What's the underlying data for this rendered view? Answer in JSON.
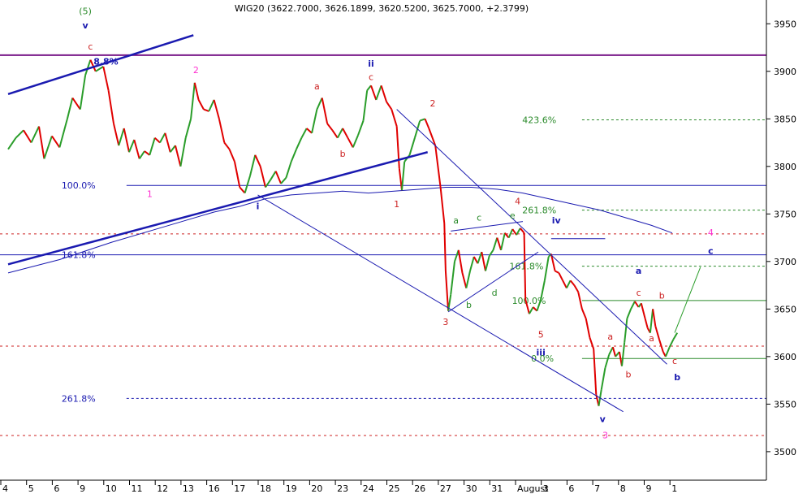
{
  "chart_data": {
    "type": "line",
    "title": "WIG20 (3622.7000, 3626.1899, 3620.5200, 3625.7000, +2.3799)",
    "ylim": [
      3470,
      3975
    ],
    "y_ticks": [
      3500,
      3550,
      3600,
      3650,
      3700,
      3750,
      3800,
      3850,
      3900,
      3950
    ],
    "x_tick_labels": [
      "4",
      "5",
      "6",
      "9",
      "10",
      "11",
      "12",
      "13",
      "16",
      "17",
      "18",
      "19",
      "20",
      "23",
      "24",
      "25",
      "26",
      "27",
      "30",
      "31",
      "August",
      "3",
      "6",
      "7",
      "8",
      "9",
      "1"
    ],
    "grid": false,
    "colors": {
      "up": "#2a9d2a",
      "down": "#e00000",
      "wave": "#1a1ab0",
      "purple_line": "#7a1a8a",
      "fib_blue": "#1a1ab0",
      "fib_red": "#cc2222",
      "fib_green": "#2a8a2a",
      "magenta": "#ff2fd0"
    },
    "price_path": [
      [
        0,
        3818
      ],
      [
        0.3,
        3830
      ],
      [
        0.6,
        3838
      ],
      [
        0.9,
        3825
      ],
      [
        1.2,
        3842
      ],
      [
        1.4,
        3808
      ],
      [
        1.7,
        3832
      ],
      [
        2.0,
        3820
      ],
      [
        2.3,
        3850
      ],
      [
        2.5,
        3872
      ],
      [
        2.8,
        3860
      ],
      [
        3.0,
        3896
      ],
      [
        3.2,
        3912
      ],
      [
        3.4,
        3900
      ],
      [
        3.7,
        3905
      ],
      [
        3.9,
        3880
      ],
      [
        4.1,
        3845
      ],
      [
        4.3,
        3822
      ],
      [
        4.5,
        3840
      ],
      [
        4.7,
        3815
      ],
      [
        4.9,
        3828
      ],
      [
        5.1,
        3808
      ],
      [
        5.3,
        3816
      ],
      [
        5.5,
        3812
      ],
      [
        5.7,
        3830
      ],
      [
        5.9,
        3825
      ],
      [
        6.1,
        3835
      ],
      [
        6.3,
        3815
      ],
      [
        6.5,
        3822
      ],
      [
        6.7,
        3800
      ],
      [
        6.9,
        3830
      ],
      [
        7.1,
        3850
      ],
      [
        7.25,
        3888
      ],
      [
        7.4,
        3870
      ],
      [
        7.6,
        3860
      ],
      [
        7.8,
        3858
      ],
      [
        8.0,
        3870
      ],
      [
        8.2,
        3850
      ],
      [
        8.4,
        3825
      ],
      [
        8.6,
        3818
      ],
      [
        8.8,
        3805
      ],
      [
        9.0,
        3778
      ],
      [
        9.2,
        3772
      ],
      [
        9.4,
        3790
      ],
      [
        9.6,
        3812
      ],
      [
        9.8,
        3800
      ],
      [
        10.0,
        3778
      ],
      [
        10.2,
        3786
      ],
      [
        10.4,
        3795
      ],
      [
        10.6,
        3782
      ],
      [
        10.8,
        3788
      ],
      [
        11.0,
        3805
      ],
      [
        11.2,
        3818
      ],
      [
        11.4,
        3830
      ],
      [
        11.6,
        3840
      ],
      [
        11.8,
        3835
      ],
      [
        12.0,
        3860
      ],
      [
        12.2,
        3872
      ],
      [
        12.4,
        3845
      ],
      [
        12.6,
        3838
      ],
      [
        12.8,
        3830
      ],
      [
        13.0,
        3840
      ],
      [
        13.2,
        3830
      ],
      [
        13.4,
        3820
      ],
      [
        13.6,
        3833
      ],
      [
        13.8,
        3848
      ],
      [
        13.95,
        3880
      ],
      [
        14.1,
        3885
      ],
      [
        14.3,
        3870
      ],
      [
        14.5,
        3885
      ],
      [
        14.7,
        3868
      ],
      [
        14.9,
        3860
      ],
      [
        15.1,
        3842
      ],
      [
        15.2,
        3798
      ],
      [
        15.3,
        3775
      ],
      [
        15.4,
        3805
      ],
      [
        15.6,
        3812
      ],
      [
        15.8,
        3830
      ],
      [
        16.0,
        3848
      ],
      [
        16.2,
        3850
      ],
      [
        16.35,
        3840
      ],
      [
        16.6,
        3822
      ],
      [
        16.8,
        3778
      ],
      [
        16.95,
        3740
      ],
      [
        17.0,
        3690
      ],
      [
        17.1,
        3648
      ],
      [
        17.2,
        3665
      ],
      [
        17.35,
        3700
      ],
      [
        17.5,
        3712
      ],
      [
        17.65,
        3688
      ],
      [
        17.8,
        3672
      ],
      [
        17.95,
        3690
      ],
      [
        18.1,
        3705
      ],
      [
        18.25,
        3698
      ],
      [
        18.4,
        3710
      ],
      [
        18.55,
        3690
      ],
      [
        18.7,
        3706
      ],
      [
        18.85,
        3712
      ],
      [
        19.0,
        3725
      ],
      [
        19.15,
        3712
      ],
      [
        19.3,
        3730
      ],
      [
        19.45,
        3725
      ],
      [
        19.6,
        3734
      ],
      [
        19.75,
        3728
      ],
      [
        19.9,
        3735
      ],
      [
        20.05,
        3730
      ],
      [
        20.1,
        3660
      ],
      [
        20.25,
        3645
      ],
      [
        20.4,
        3652
      ],
      [
        20.55,
        3648
      ],
      [
        20.7,
        3660
      ],
      [
        20.85,
        3680
      ],
      [
        21.0,
        3705
      ],
      [
        21.1,
        3708
      ],
      [
        21.25,
        3690
      ],
      [
        21.4,
        3688
      ],
      [
        21.55,
        3680
      ],
      [
        21.7,
        3672
      ],
      [
        21.85,
        3680
      ],
      [
        22.0,
        3675
      ],
      [
        22.15,
        3668
      ],
      [
        22.3,
        3650
      ],
      [
        22.45,
        3640
      ],
      [
        22.6,
        3620
      ],
      [
        22.75,
        3608
      ],
      [
        22.85,
        3560
      ],
      [
        22.95,
        3548
      ],
      [
        23.05,
        3565
      ],
      [
        23.2,
        3588
      ],
      [
        23.35,
        3602
      ],
      [
        23.5,
        3610
      ],
      [
        23.6,
        3600
      ],
      [
        23.75,
        3605
      ],
      [
        23.85,
        3590
      ],
      [
        23.95,
        3615
      ],
      [
        24.05,
        3640
      ],
      [
        24.2,
        3650
      ],
      [
        24.35,
        3658
      ],
      [
        24.5,
        3652
      ],
      [
        24.6,
        3656
      ],
      [
        24.75,
        3640
      ],
      [
        24.85,
        3630
      ],
      [
        24.95,
        3625
      ],
      [
        25.05,
        3650
      ],
      [
        25.15,
        3632
      ],
      [
        25.3,
        3618
      ],
      [
        25.45,
        3605
      ],
      [
        25.55,
        3600
      ],
      [
        25.7,
        3610
      ],
      [
        25.85,
        3618
      ],
      [
        26.0,
        3625
      ]
    ],
    "ma_path": [
      [
        0,
        3688
      ],
      [
        2,
        3702
      ],
      [
        4,
        3720
      ],
      [
        6,
        3736
      ],
      [
        8,
        3752
      ],
      [
        9,
        3758
      ],
      [
        10,
        3766
      ],
      [
        11,
        3770
      ],
      [
        12,
        3772
      ],
      [
        13,
        3774
      ],
      [
        14,
        3772
      ],
      [
        15,
        3774
      ],
      [
        16,
        3776
      ],
      [
        17,
        3778
      ],
      [
        18,
        3778
      ],
      [
        19,
        3776
      ],
      [
        20,
        3772
      ],
      [
        21,
        3766
      ],
      [
        22,
        3760
      ],
      [
        23,
        3754
      ],
      [
        24,
        3746
      ],
      [
        25,
        3738
      ],
      [
        25.8,
        3730
      ]
    ],
    "horizontal_lines": [
      {
        "value": 3917,
        "style": "purple_line",
        "label": "",
        "label_at": 0
      },
      {
        "value": 3780,
        "style": "fib_blue",
        "label": "100.0%",
        "label_at": 3.4
      },
      {
        "value": 3707,
        "style": "fib_blue",
        "label": "161.8%",
        "label_at": 3.4
      },
      {
        "value": 3556,
        "style": "fib_blue_dash",
        "label": "261.8%",
        "label_at": 3.4
      },
      {
        "value": 3729,
        "style": "fib_red",
        "label": "",
        "label_at": 0
      },
      {
        "value": 3611,
        "style": "fib_red",
        "label": "",
        "label_at": 0
      },
      {
        "value": 3517,
        "style": "fib_red",
        "label": "",
        "label_at": 0
      },
      {
        "value": 3849,
        "style": "fib_green_from",
        "from": 21.3,
        "label": "423.6%",
        "label_at": 21.3
      },
      {
        "value": 3754,
        "style": "fib_green_from",
        "from": 21.3,
        "label": "261.8%",
        "label_at": 21.3
      },
      {
        "value": 3695,
        "style": "fib_green_from",
        "from": 21.3,
        "label": "161.8%",
        "label_at": 20.8
      },
      {
        "value": 3659,
        "style": "fib_green_solid",
        "from": 21.3,
        "label": "100.0%",
        "label_at": 20.9
      },
      {
        "value": 3598,
        "style": "fib_green_solid",
        "from": 21.3,
        "label": "0.0%",
        "label_at": 21.2
      }
    ],
    "trend_lines": [
      {
        "from": [
          0,
          3876
        ],
        "to": [
          7.2,
          3938
        ],
        "width": 2.5
      },
      {
        "from": [
          0,
          3697
        ],
        "to": [
          16.3,
          3815
        ],
        "width": 2.5
      },
      {
        "from": [
          15.1,
          3860
        ],
        "to": [
          25.6,
          3592
        ],
        "width": 1
      },
      {
        "from": [
          9.7,
          3770
        ],
        "to": [
          23.9,
          3542
        ],
        "width": 1
      },
      {
        "from": [
          17.1,
          3647
        ],
        "to": [
          20.6,
          3710
        ],
        "width": 1
      },
      {
        "from": [
          17.2,
          3732
        ],
        "to": [
          20.0,
          3742
        ],
        "width": 1
      },
      {
        "from": [
          21.1,
          3724
        ],
        "to": [
          23.2,
          3724
        ],
        "width": 1
      },
      {
        "from": [
          25.9,
          3625
        ],
        "to": [
          26.9,
          3694
        ],
        "width": 1,
        "color": "#2a9d2a"
      }
    ],
    "annotations": [
      {
        "text": "(5)",
        "x": 3.0,
        "y": 3960,
        "color": "#2a8a2a"
      },
      {
        "text": "v",
        "x": 3.0,
        "y": 3945,
        "color": "#1a1ab0"
      },
      {
        "text": "c",
        "x": 3.2,
        "y": 3923,
        "color": "#cc2222"
      },
      {
        "text": "8.8%",
        "x": 3.8,
        "y": 3907,
        "color": "#1a1ab0"
      },
      {
        "text": "2",
        "x": 7.3,
        "y": 3898,
        "color": "#ff2fd0"
      },
      {
        "text": "1",
        "x": 5.5,
        "y": 3768,
        "color": "#ff2fd0"
      },
      {
        "text": "i",
        "x": 9.7,
        "y": 3755,
        "color": "#1a1ab0"
      },
      {
        "text": "ii",
        "x": 14.1,
        "y": 3905,
        "color": "#1a1ab0"
      },
      {
        "text": "c",
        "x": 14.1,
        "y": 3891,
        "color": "#cc2222"
      },
      {
        "text": "a",
        "x": 12.0,
        "y": 3881,
        "color": "#cc2222"
      },
      {
        "text": "b",
        "x": 13.0,
        "y": 3810,
        "color": "#cc2222"
      },
      {
        "text": "2",
        "x": 16.5,
        "y": 3863,
        "color": "#cc2222"
      },
      {
        "text": "1",
        "x": 15.1,
        "y": 3757,
        "color": "#cc2222"
      },
      {
        "text": "3",
        "x": 17.0,
        "y": 3633,
        "color": "#cc2222"
      },
      {
        "text": "a",
        "x": 17.4,
        "y": 3740,
        "color": "#2a8a2a"
      },
      {
        "text": "b",
        "x": 17.9,
        "y": 3651,
        "color": "#2a8a2a"
      },
      {
        "text": "c",
        "x": 18.3,
        "y": 3743,
        "color": "#2a8a2a"
      },
      {
        "text": "d",
        "x": 18.9,
        "y": 3664,
        "color": "#2a8a2a"
      },
      {
        "text": "e",
        "x": 19.6,
        "y": 3745,
        "color": "#2a8a2a"
      },
      {
        "text": "4",
        "x": 19.8,
        "y": 3760,
        "color": "#cc2222"
      },
      {
        "text": "iv",
        "x": 21.3,
        "y": 3740,
        "color": "#1a1ab0"
      },
      {
        "text": "5",
        "x": 20.7,
        "y": 3620,
        "color": "#cc2222"
      },
      {
        "text": "iii",
        "x": 20.7,
        "y": 3601,
        "color": "#1a1ab0"
      },
      {
        "text": "a",
        "x": 23.4,
        "y": 3618,
        "color": "#cc2222"
      },
      {
        "text": "b",
        "x": 24.1,
        "y": 3578,
        "color": "#cc2222"
      },
      {
        "text": "v",
        "x": 23.1,
        "y": 3531,
        "color": "#1a1ab0"
      },
      {
        "text": "3",
        "x": 23.2,
        "y": 3514,
        "color": "#ff2fd0"
      },
      {
        "text": "a",
        "x": 24.5,
        "y": 3687,
        "color": "#1a1ab0"
      },
      {
        "text": "c",
        "x": 24.5,
        "y": 3664,
        "color": "#cc2222"
      },
      {
        "text": "b",
        "x": 25.4,
        "y": 3661,
        "color": "#cc2222"
      },
      {
        "text": "a",
        "x": 25.0,
        "y": 3616,
        "color": "#cc2222"
      },
      {
        "text": "c",
        "x": 25.9,
        "y": 3592,
        "color": "#cc2222"
      },
      {
        "text": "b",
        "x": 26.0,
        "y": 3575,
        "color": "#1a1ab0"
      },
      {
        "text": "4",
        "x": 27.3,
        "y": 3727,
        "color": "#ff2fd0"
      },
      {
        "text": "c",
        "x": 27.3,
        "y": 3708,
        "color": "#1a1ab0"
      }
    ]
  }
}
